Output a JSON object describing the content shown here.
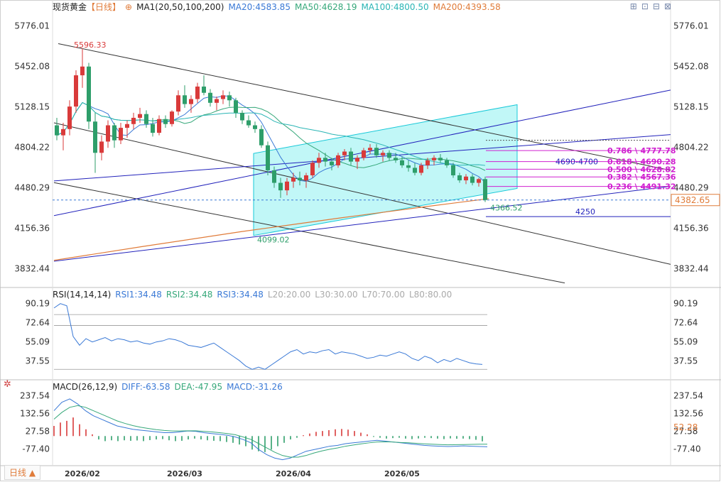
{
  "header": {
    "symbol": "现货黄金",
    "period_tag": "【日线】",
    "ma_label": "MA1(20,50,100,200)",
    "ma20": "MA20:4583.85",
    "ma50": "MA50:4628.19",
    "ma100": "MA100:4800.50",
    "ma200": "MA200:4393.58"
  },
  "rsi_header": {
    "label": "RSI(14,14,14)",
    "rsi1": "RSI1:34.48",
    "rsi2": "RSI2:34.48",
    "rsi3": "RSI3:34.48",
    "l20": "L20:20.00",
    "l30": "L30:30.00",
    "l70": "L70:70.00",
    "l80": "L80:80.00"
  },
  "macd_header": {
    "label": "MACD(26,12,9)",
    "diff": "DIFF:-63.58",
    "dea": "DEA:-47.95",
    "macd": "MACD:-31.26"
  },
  "period_button": "日线 ▲",
  "icons": [
    "expand-icon",
    "fullscreen-icon",
    "minimize-icon",
    "close-icon",
    "settings-gear-icon"
  ],
  "colors": {
    "up": "#d93a3a",
    "down": "#2e9e6a",
    "ma20": "#3a79d6",
    "ma50": "#36a87a",
    "ma100": "#2ab5b5",
    "ma200": "#e07b39",
    "fib": "#d020d0",
    "channel_fill": "#8ef0f0"
  },
  "chart_data": [
    {
      "type": "candlestick",
      "title": "现货黄金 日线",
      "x_tick_labels": [
        "2026/02",
        "2026/03",
        "2026/04",
        "2026/05"
      ],
      "y_tick_labels": [
        "5776.01",
        "5452.08",
        "5128.15",
        "4804.22",
        "4480.29",
        "4156.36",
        "3832.44"
      ],
      "ylim": [
        3700,
        5880
      ],
      "ohlc": [
        [
          4980,
          5040,
          4860,
          4900
        ],
        [
          4900,
          5000,
          4780,
          4950
        ],
        [
          4950,
          5180,
          4900,
          5130
        ],
        [
          5130,
          5420,
          5080,
          5380
        ],
        [
          5380,
          5596.33,
          5280,
          5450
        ],
        [
          5450,
          5480,
          4950,
          5010
        ],
        [
          5010,
          5080,
          4600,
          4760
        ],
        [
          4760,
          4900,
          4700,
          4850
        ],
        [
          4850,
          5020,
          4800,
          4980
        ],
        [
          4980,
          5000,
          4800,
          4860
        ],
        [
          4860,
          5000,
          4830,
          4960
        ],
        [
          4960,
          5020,
          4880,
          4990
        ],
        [
          4990,
          5080,
          4950,
          5040
        ],
        [
          5040,
          5120,
          5000,
          5070
        ],
        [
          5070,
          5100,
          4960,
          4990
        ],
        [
          4990,
          5040,
          4890,
          4920
        ],
        [
          4920,
          5060,
          4900,
          5030
        ],
        [
          5030,
          5060,
          4960,
          4990
        ],
        [
          4990,
          5100,
          4970,
          5090
        ],
        [
          5090,
          5260,
          5060,
          5220
        ],
        [
          5220,
          5300,
          5120,
          5150
        ],
        [
          5150,
          5220,
          5080,
          5190
        ],
        [
          5190,
          5320,
          5160,
          5290
        ],
        [
          5290,
          5380,
          5220,
          5240
        ],
        [
          5240,
          5270,
          5130,
          5160
        ],
        [
          5160,
          5210,
          5100,
          5190
        ],
        [
          5190,
          5260,
          5150,
          5220
        ],
        [
          5220,
          5250,
          5130,
          5180
        ],
        [
          5180,
          5200,
          5040,
          5080
        ],
        [
          5080,
          5100,
          4990,
          5020
        ],
        [
          5020,
          5060,
          4960,
          4980
        ],
        [
          4980,
          5010,
          4920,
          4950
        ],
        [
          4950,
          4980,
          4800,
          4820
        ],
        [
          4820,
          4850,
          4580,
          4620
        ],
        [
          4620,
          4650,
          4480,
          4520
        ],
        [
          4520,
          4560,
          4400,
          4460
        ],
        [
          4460,
          4560,
          4420,
          4530
        ],
        [
          4530,
          4600,
          4480,
          4560
        ],
        [
          4560,
          4610,
          4500,
          4540
        ],
        [
          4540,
          4600,
          4480,
          4580
        ],
        [
          4580,
          4700,
          4560,
          4680
        ],
        [
          4680,
          4760,
          4640,
          4720
        ],
        [
          4720,
          4760,
          4650,
          4690
        ],
        [
          4690,
          4720,
          4620,
          4660
        ],
        [
          4660,
          4760,
          4640,
          4740
        ],
        [
          4740,
          4790,
          4700,
          4770
        ],
        [
          4770,
          4800,
          4660,
          4690
        ],
        [
          4690,
          4740,
          4630,
          4720
        ],
        [
          4720,
          4800,
          4700,
          4780
        ],
        [
          4780,
          4830,
          4750,
          4800
        ],
        [
          4800,
          4830,
          4720,
          4740
        ],
        [
          4740,
          4780,
          4690,
          4760
        ],
        [
          4760,
          4780,
          4700,
          4720
        ],
        [
          4720,
          4760,
          4680,
          4700
        ],
        [
          4700,
          4730,
          4640,
          4660
        ],
        [
          4660,
          4700,
          4610,
          4640
        ],
        [
          4640,
          4680,
          4580,
          4600
        ],
        [
          4600,
          4680,
          4580,
          4660
        ],
        [
          4660,
          4720,
          4630,
          4700
        ],
        [
          4700,
          4740,
          4660,
          4720
        ],
        [
          4720,
          4750,
          4680,
          4700
        ],
        [
          4700,
          4720,
          4640,
          4660
        ],
        [
          4660,
          4680,
          4560,
          4580
        ],
        [
          4580,
          4600,
          4520,
          4540
        ],
        [
          4540,
          4590,
          4510,
          4570
        ],
        [
          4570,
          4590,
          4500,
          4520
        ],
        [
          4520,
          4560,
          4490,
          4550
        ],
        [
          4550,
          4570,
          4366.52,
          4382.65
        ]
      ],
      "moving_averages": [
        {
          "name": "MA20",
          "value": 4583.85
        },
        {
          "name": "MA50",
          "value": 4628.19
        },
        {
          "name": "MA100",
          "value": 4800.5
        },
        {
          "name": "MA200",
          "value": 4393.58
        }
      ],
      "fibonacci": [
        {
          "ratio": "0.786",
          "value": "4777.78"
        },
        {
          "ratio": "0.618",
          "value": "4690.28"
        },
        {
          "ratio": "0.500",
          "value": "4628.82"
        },
        {
          "ratio": "0.382",
          "value": "4567.36"
        },
        {
          "ratio": "0.236",
          "value": "4491.32"
        }
      ],
      "annotations": {
        "high": "5596.33",
        "channel_low": "4099.02",
        "recent_low": "4366.52",
        "current_price": "4382.65",
        "zone": "4690-4700",
        "support": "4250"
      }
    },
    {
      "type": "line",
      "title": "RSI(14,14,14)",
      "y_tick_labels": [
        "90.19",
        "72.64",
        "55.09",
        "37.55"
      ],
      "ylim": [
        25,
        95
      ],
      "reference_lines": [
        20,
        30,
        70,
        80
      ],
      "series": [
        {
          "name": "RSI1",
          "last": 34.48
        }
      ]
    },
    {
      "type": "bar",
      "title": "MACD(26,12,9)",
      "y_tick_labels": [
        "237.54",
        "132.56",
        "27.58",
        "-77.40"
      ],
      "ylim": [
        -150,
        270
      ],
      "current_value": "52.28",
      "series": [
        {
          "name": "DIFF",
          "last": -63.58
        },
        {
          "name": "DEA",
          "last": -47.95
        },
        {
          "name": "MACD",
          "last": -31.26
        }
      ]
    }
  ]
}
